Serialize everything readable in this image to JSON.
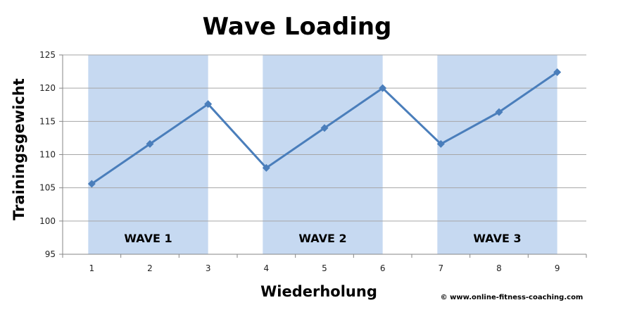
{
  "chart_data": {
    "type": "line",
    "title": "Wave Loading",
    "xlabel": "Wiederholung",
    "ylabel": "Trainingsgewicht",
    "x": [
      1,
      2,
      3,
      4,
      5,
      6,
      7,
      8,
      9
    ],
    "series": [
      {
        "values": [
          105.6,
          111.6,
          117.6,
          108.0,
          114.0,
          120.0,
          111.6,
          116.4,
          122.4
        ]
      }
    ],
    "ylim": [
      95,
      125
    ],
    "yticks": [
      95,
      100,
      105,
      110,
      115,
      120,
      125
    ],
    "grid": true,
    "legend": "none",
    "bands": [
      {
        "label": "WAVE 1",
        "from": 1,
        "to": 3
      },
      {
        "label": "WAVE 2",
        "from": 4,
        "to": 6
      },
      {
        "label": "WAVE 3",
        "from": 7,
        "to": 9
      }
    ],
    "colors": {
      "line": "#4a7ebb",
      "marker": "#4a7ebb",
      "band": "#c6d9f1",
      "grid": "#a6a6a6",
      "axis": "#868686"
    }
  },
  "copyright": "© www.online-fitness-coaching.com"
}
